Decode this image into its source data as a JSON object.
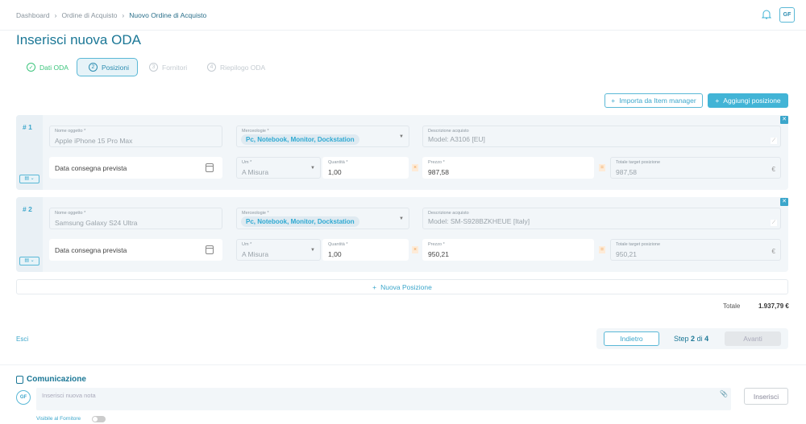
{
  "breadcrumb": [
    "Dashboard",
    "Ordine di Acquisto",
    "Nuovo Ordine di Acquisto"
  ],
  "user_initials": "GF",
  "title": "Inserisci nuova ODA",
  "steps": [
    {
      "n": "✓",
      "label": "Dati ODA",
      "state": "done"
    },
    {
      "n": "2",
      "label": "Posizioni",
      "state": "active"
    },
    {
      "n": "3",
      "label": "Fornitori",
      "state": "todo"
    },
    {
      "n": "4",
      "label": "Riepilogo ODA",
      "state": "todo"
    }
  ],
  "actions": {
    "import": "Importa da Item manager",
    "add": "Aggiungi posizione"
  },
  "labels": {
    "nome": "Nome oggetto *",
    "merc": "Merceologie *",
    "desc": "Descrizione acquisto",
    "data": "Data consegna prevista",
    "um": "Um *",
    "qta": "Quantità *",
    "prezzo": "Prezzo *",
    "totale": "Totale target posizione",
    "currency": "€",
    "times": "×",
    "equals": "="
  },
  "positions": [
    {
      "num": "# 1",
      "nome": "Apple iPhone 15 Pro Max",
      "merc": "Pc, Notebook, Monitor, Dockstation",
      "desc": "Model: A3106 [EU]",
      "um": "A Misura",
      "qta": "1,00",
      "prezzo": "987,58",
      "totale": "987,58"
    },
    {
      "num": "# 2",
      "nome": "Samsung Galaxy S24 Ultra",
      "merc": "Pc, Notebook, Monitor, Dockstation",
      "desc": "Model: SM-S928BZKHEUE [Italy]",
      "um": "A Misura",
      "qta": "1,00",
      "prezzo": "950,21",
      "totale": "950,21"
    }
  ],
  "new_position": "Nuova Posizione",
  "total": {
    "label": "Totale",
    "value": "1.937,79 €"
  },
  "nav": {
    "exit": "Esci",
    "back": "Indietro",
    "step_prefix": "Step",
    "step_current": "2",
    "step_of": "di",
    "step_total": "4",
    "next": "Avanti"
  },
  "comm": {
    "title": "Comunicazione",
    "placeholder": "Inserisci nuova nota",
    "submit": "Inserisci",
    "visible": "Visibile al Fornitore",
    "visible_on": false
  },
  "colors": {
    "accent": "#42b4d6",
    "title": "#1b7796",
    "success": "#3cc47c"
  }
}
